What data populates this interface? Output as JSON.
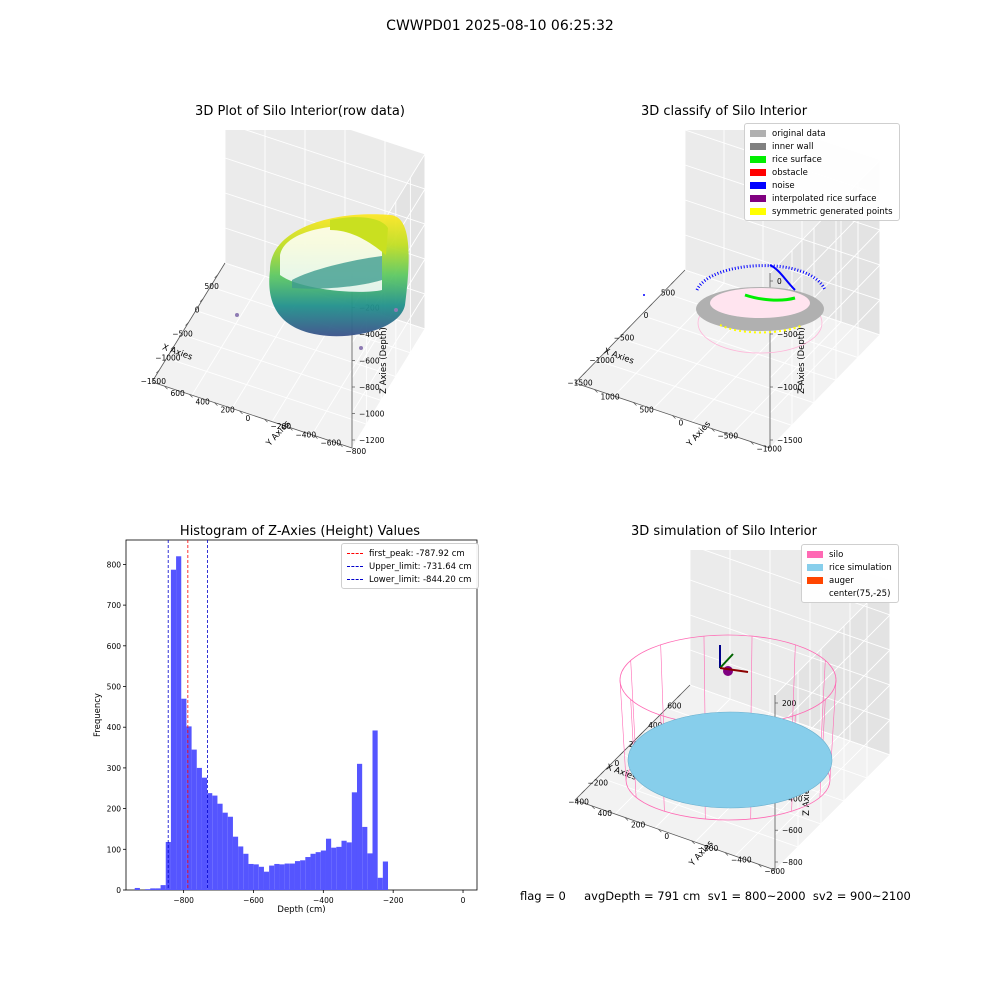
{
  "figure": {
    "suptitle": "CWWPD01 2025-08-10 06:25:32"
  },
  "panels": {
    "p1": {
      "title": "3D Plot of Silo Interior(row data)",
      "xlabel": "X Axies",
      "ylabel": "Y Axies",
      "zlabel": "Z Axies (Depth)",
      "xticks": [
        "−1500",
        "−1000",
        "−500",
        "0",
        "500"
      ],
      "yticks": [
        "−800",
        "−600",
        "−400",
        "−200",
        "0",
        "200",
        "400",
        "600"
      ],
      "zticks": [
        "0",
        "−200",
        "−400",
        "−600",
        "−800",
        "−1000",
        "−1200"
      ]
    },
    "p2": {
      "title": "3D classify of Silo Interior",
      "xlabel": "X Axies",
      "ylabel": "Y Axies",
      "zlabel": "Z Axies (Depth)",
      "xticks": [
        "−1500",
        "−1000",
        "−500",
        "0",
        "500"
      ],
      "yticks": [
        "−1000",
        "−500",
        "0",
        "500",
        "1000"
      ],
      "zticks": [
        "0",
        "−500",
        "−1000",
        "−1500"
      ],
      "legend": [
        {
          "label": "original data",
          "color": "#b0b0b0"
        },
        {
          "label": "inner wall",
          "color": "#808080"
        },
        {
          "label": "rice surface",
          "color": "#00ee00"
        },
        {
          "label": "obstacle",
          "color": "#ff0000"
        },
        {
          "label": "noise",
          "color": "#0000ff"
        },
        {
          "label": "interpolated rice surface",
          "color": "#800080"
        },
        {
          "label": "symmetric generated points",
          "color": "#ffff00"
        }
      ]
    },
    "p4": {
      "title": "3D simulation of Silo Interior",
      "xlabel": "X Axies",
      "ylabel": "Y Axies",
      "zlabel": "Z Axies (Depth)",
      "xticks": [
        "−400",
        "−200",
        "0",
        "200",
        "400",
        "600"
      ],
      "yticks": [
        "−600",
        "−400",
        "−200",
        "0",
        "200",
        "400"
      ],
      "zticks": [
        "200",
        "0",
        "−200",
        "−400",
        "−600",
        "−800"
      ],
      "legend": [
        {
          "label": "silo",
          "color": "#ff69b4"
        },
        {
          "label": "rice simulation",
          "color": "#87ceeb"
        },
        {
          "label": "auger",
          "color": "#ff4500"
        },
        {
          "label": "center(75,-25)",
          "color": ""
        }
      ]
    }
  },
  "status": {
    "text": "flag = 0     avgDepth = 791 cm  sv1 = 800~2000  sv2 = 900~2100"
  },
  "chart_data": {
    "type": "bar",
    "title": "Histogram of Z-Axies (Height) Values",
    "xlabel": "Depth (cm)",
    "ylabel": "Frequency",
    "xlim": [
      -965,
      40
    ],
    "ylim": [
      0,
      860
    ],
    "xticks": [
      -800,
      -600,
      -400,
      -200,
      0
    ],
    "xtick_labels": [
      "−800",
      "−600",
      "−400",
      "−200",
      "0"
    ],
    "yticks": [
      0,
      100,
      200,
      300,
      400,
      500,
      600,
      700,
      800
    ],
    "bin_width": 14.8,
    "bin_start": -940,
    "values": [
      5,
      0,
      2,
      4,
      4,
      12,
      118,
      787,
      820,
      470,
      402,
      345,
      300,
      276,
      238,
      232,
      212,
      190,
      180,
      131,
      107,
      89,
      64,
      63,
      57,
      45,
      60,
      64,
      63,
      65,
      65,
      71,
      73,
      81,
      89,
      93,
      97,
      126,
      104,
      106,
      121,
      117,
      240,
      310,
      155,
      90,
      392,
      30,
      70
    ],
    "legend": [
      {
        "label": "first_peak: -787.92 cm",
        "value": -787.92,
        "color": "#ff0000"
      },
      {
        "label": "Upper_limit: -731.64 cm",
        "value": -731.64,
        "color": "#0000cc"
      },
      {
        "label": "Lower_limit: -844.20 cm",
        "value": -844.2,
        "color": "#0000cc"
      }
    ],
    "legend_position": "top-right"
  }
}
